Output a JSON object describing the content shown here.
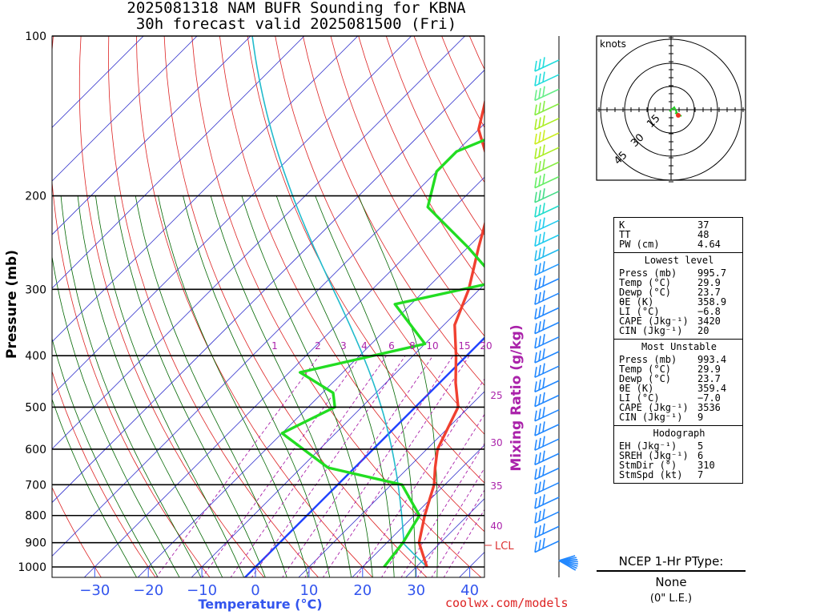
{
  "title": {
    "line1": "2025081318 NAM BUFR Sounding for KBNA",
    "line2": "30h forecast valid 2025081500 (Fri)"
  },
  "axes": {
    "ylabel": "Pressure (mb)",
    "xlabel": "Temperature (°C)",
    "mixing_label": "Mixing Ratio (g/kg)",
    "pressure_ticks": [
      "100",
      "200",
      "300",
      "400",
      "500",
      "600",
      "700",
      "800",
      "900",
      "1000"
    ],
    "temp_ticks": [
      "−30",
      "−20",
      "−10",
      "0",
      "10",
      "20",
      "30",
      "40"
    ],
    "mixing_ticks": [
      "1",
      "2",
      "3",
      "4",
      "6",
      "8",
      "10",
      "15",
      "20",
      "25",
      "30",
      "35",
      "40"
    ],
    "lcl_label": "LCL"
  },
  "hodograph": {
    "unit_label": "knots",
    "ring_labels": [
      "15",
      "30",
      "45"
    ]
  },
  "stats": {
    "k_label": "K",
    "k_value": "37",
    "tt_label": "TT",
    "tt_value": "48",
    "pw_label": "PW (cm)",
    "pw_value": "4.64",
    "lowest": {
      "header": "Lowest level",
      "rows": [
        {
          "k": "Press (mb)",
          "v": "995.7"
        },
        {
          "k": "Temp (°C)",
          "v": "29.9"
        },
        {
          "k": "Dewp (°C)",
          "v": "23.7"
        },
        {
          "k": "θE (K)",
          "v": "358.9"
        },
        {
          "k": "LI (°C)",
          "v": "−6.8"
        },
        {
          "k": "CAPE (Jkg⁻¹)",
          "v": "3420"
        },
        {
          "k": "CIN (Jkg⁻¹)",
          "v": "20"
        }
      ]
    },
    "unstable": {
      "header": "Most Unstable",
      "rows": [
        {
          "k": "Press (mb)",
          "v": "993.4"
        },
        {
          "k": "Temp (°C)",
          "v": "29.9"
        },
        {
          "k": "Dewp (°C)",
          "v": "23.7"
        },
        {
          "k": "θE (K)",
          "v": "359.4"
        },
        {
          "k": "LI (°C)",
          "v": "−7.0"
        },
        {
          "k": "CAPE (Jkg⁻¹)",
          "v": "3536"
        },
        {
          "k": "CIN (Jkg⁻¹)",
          "v": "9"
        }
      ]
    },
    "hodo": {
      "header": "Hodograph",
      "rows": [
        {
          "k": "EH (Jkg⁻¹)",
          "v": "5"
        },
        {
          "k": "SREH (Jkg⁻¹)",
          "v": "6"
        },
        {
          "k": "StmDir (°)",
          "v": "310"
        },
        {
          "k": "StmSpd (kt)",
          "v": "7"
        }
      ]
    }
  },
  "ptype": {
    "title": "NCEP 1-Hr PType:",
    "value": "None",
    "snow": "(0\" L.E.)"
  },
  "credit": "coolwx.com/models",
  "colors": {
    "temperature": "#f04030",
    "dewpoint": "#22dd22",
    "parcel": "#22bbcc",
    "isotherm": "#3333cc",
    "dry_adiabat": "#dd2222",
    "moist_adiabat": "#006600",
    "mixing_ratio": "#aa22aa",
    "zero_isotherm": "#2244ff",
    "wind_barb": "#2288ff"
  },
  "chart_data": {
    "type": "line",
    "title": "",
    "xlabel": "Temperature (°C)",
    "ylabel": "Pressure (mb)",
    "ylim": [
      1000,
      100
    ],
    "xlim": [
      -40,
      40
    ],
    "yscale": "log",
    "skewed": true,
    "series": [
      {
        "name": "temperature",
        "points": [
          [
            32,
            1000
          ],
          [
            26,
            900
          ],
          [
            22,
            800
          ],
          [
            18,
            700
          ],
          [
            15,
            650
          ],
          [
            12,
            600
          ],
          [
            8,
            500
          ],
          [
            3,
            450
          ],
          [
            -2,
            400
          ],
          [
            -8,
            350
          ],
          [
            -12,
            300
          ],
          [
            -18,
            250
          ],
          [
            -25,
            200
          ],
          [
            -33,
            170
          ],
          [
            -40,
            150
          ],
          [
            -46,
            125
          ],
          [
            -50,
            100
          ]
        ]
      },
      {
        "name": "dewpoint",
        "points": [
          [
            24,
            1000
          ],
          [
            23,
            900
          ],
          [
            21,
            800
          ],
          [
            12,
            700
          ],
          [
            -5,
            650
          ],
          [
            -20,
            560
          ],
          [
            -15,
            500
          ],
          [
            -18,
            470
          ],
          [
            -28,
            430
          ],
          [
            -10,
            380
          ],
          [
            -23,
            320
          ],
          [
            -8,
            290
          ],
          [
            -20,
            250
          ],
          [
            -35,
            210
          ],
          [
            -40,
            180
          ],
          [
            -40,
            165
          ],
          [
            -30,
            140
          ]
        ]
      }
    ]
  }
}
